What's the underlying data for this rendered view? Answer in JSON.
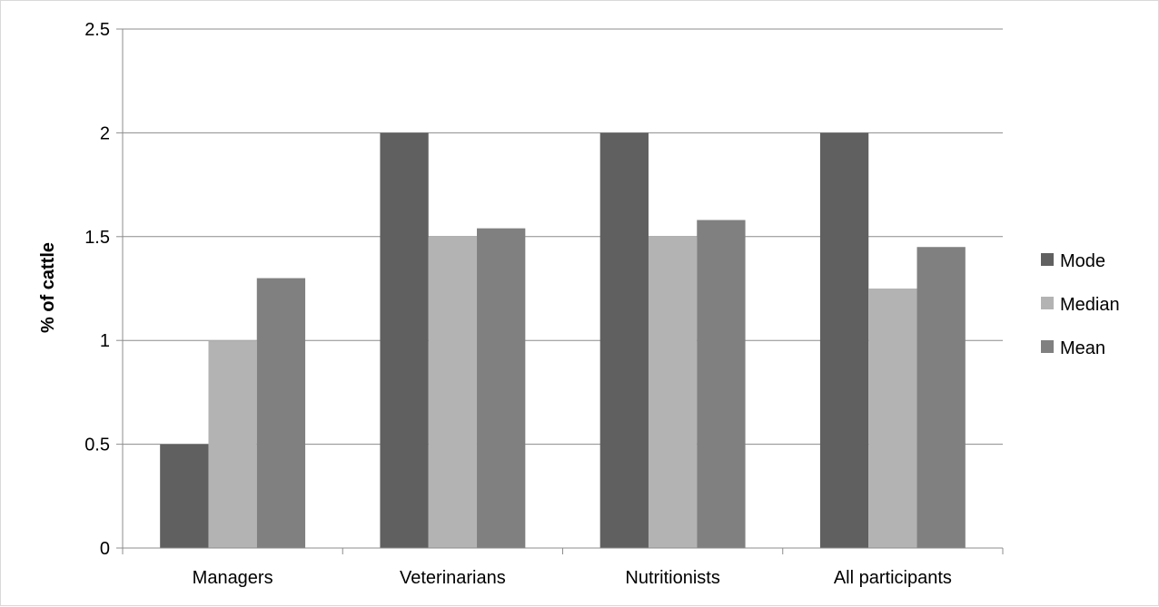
{
  "chart_data": {
    "type": "bar",
    "title": "",
    "xlabel": "",
    "ylabel": "% of cattle",
    "ylim": [
      0,
      2.5
    ],
    "yticks": [
      "0",
      "0.5",
      "1",
      "1.5",
      "2",
      "2.5"
    ],
    "categories": [
      "Managers",
      "Veterinarians",
      "Nutritionists",
      "All participants"
    ],
    "series": [
      {
        "name": "Mode",
        "color": "#606060",
        "values": [
          0.5,
          2.0,
          2.0,
          2.0
        ]
      },
      {
        "name": "Median",
        "color": "#b3b3b3",
        "values": [
          1.0,
          1.5,
          1.5,
          1.25
        ]
      },
      {
        "name": "Mean",
        "color": "#808080",
        "values": [
          1.3,
          1.54,
          1.58,
          1.45
        ]
      }
    ],
    "grid": true,
    "legend_position": "right"
  }
}
